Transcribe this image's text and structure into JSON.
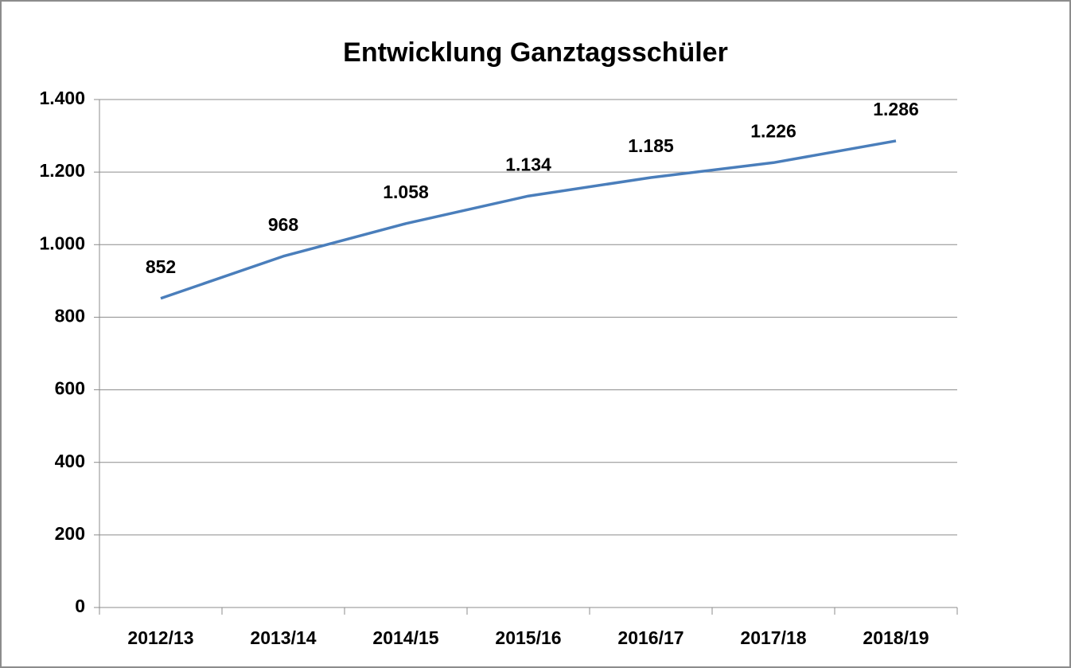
{
  "chart_data": {
    "type": "line",
    "title": "Entwicklung Ganztagsschüler",
    "categories": [
      "2012/13",
      "2013/14",
      "2014/15",
      "2015/16",
      "2016/17",
      "2017/18",
      "2018/19"
    ],
    "values": [
      852,
      968,
      1058,
      1134,
      1185,
      1226,
      1286
    ],
    "value_labels": [
      "852",
      "968",
      "1.058",
      "1.134",
      "1.185",
      "1.226",
      "1.286"
    ],
    "color": "#4a7ebb",
    "ylim": [
      0,
      1400
    ],
    "yticks": [
      0,
      200,
      400,
      600,
      800,
      {
        "value": 1000,
        "label": "1.000"
      },
      {
        "value": 1200,
        "label": "1.200"
      },
      {
        "value": 1400,
        "label": "1.400"
      }
    ],
    "grid": true
  }
}
